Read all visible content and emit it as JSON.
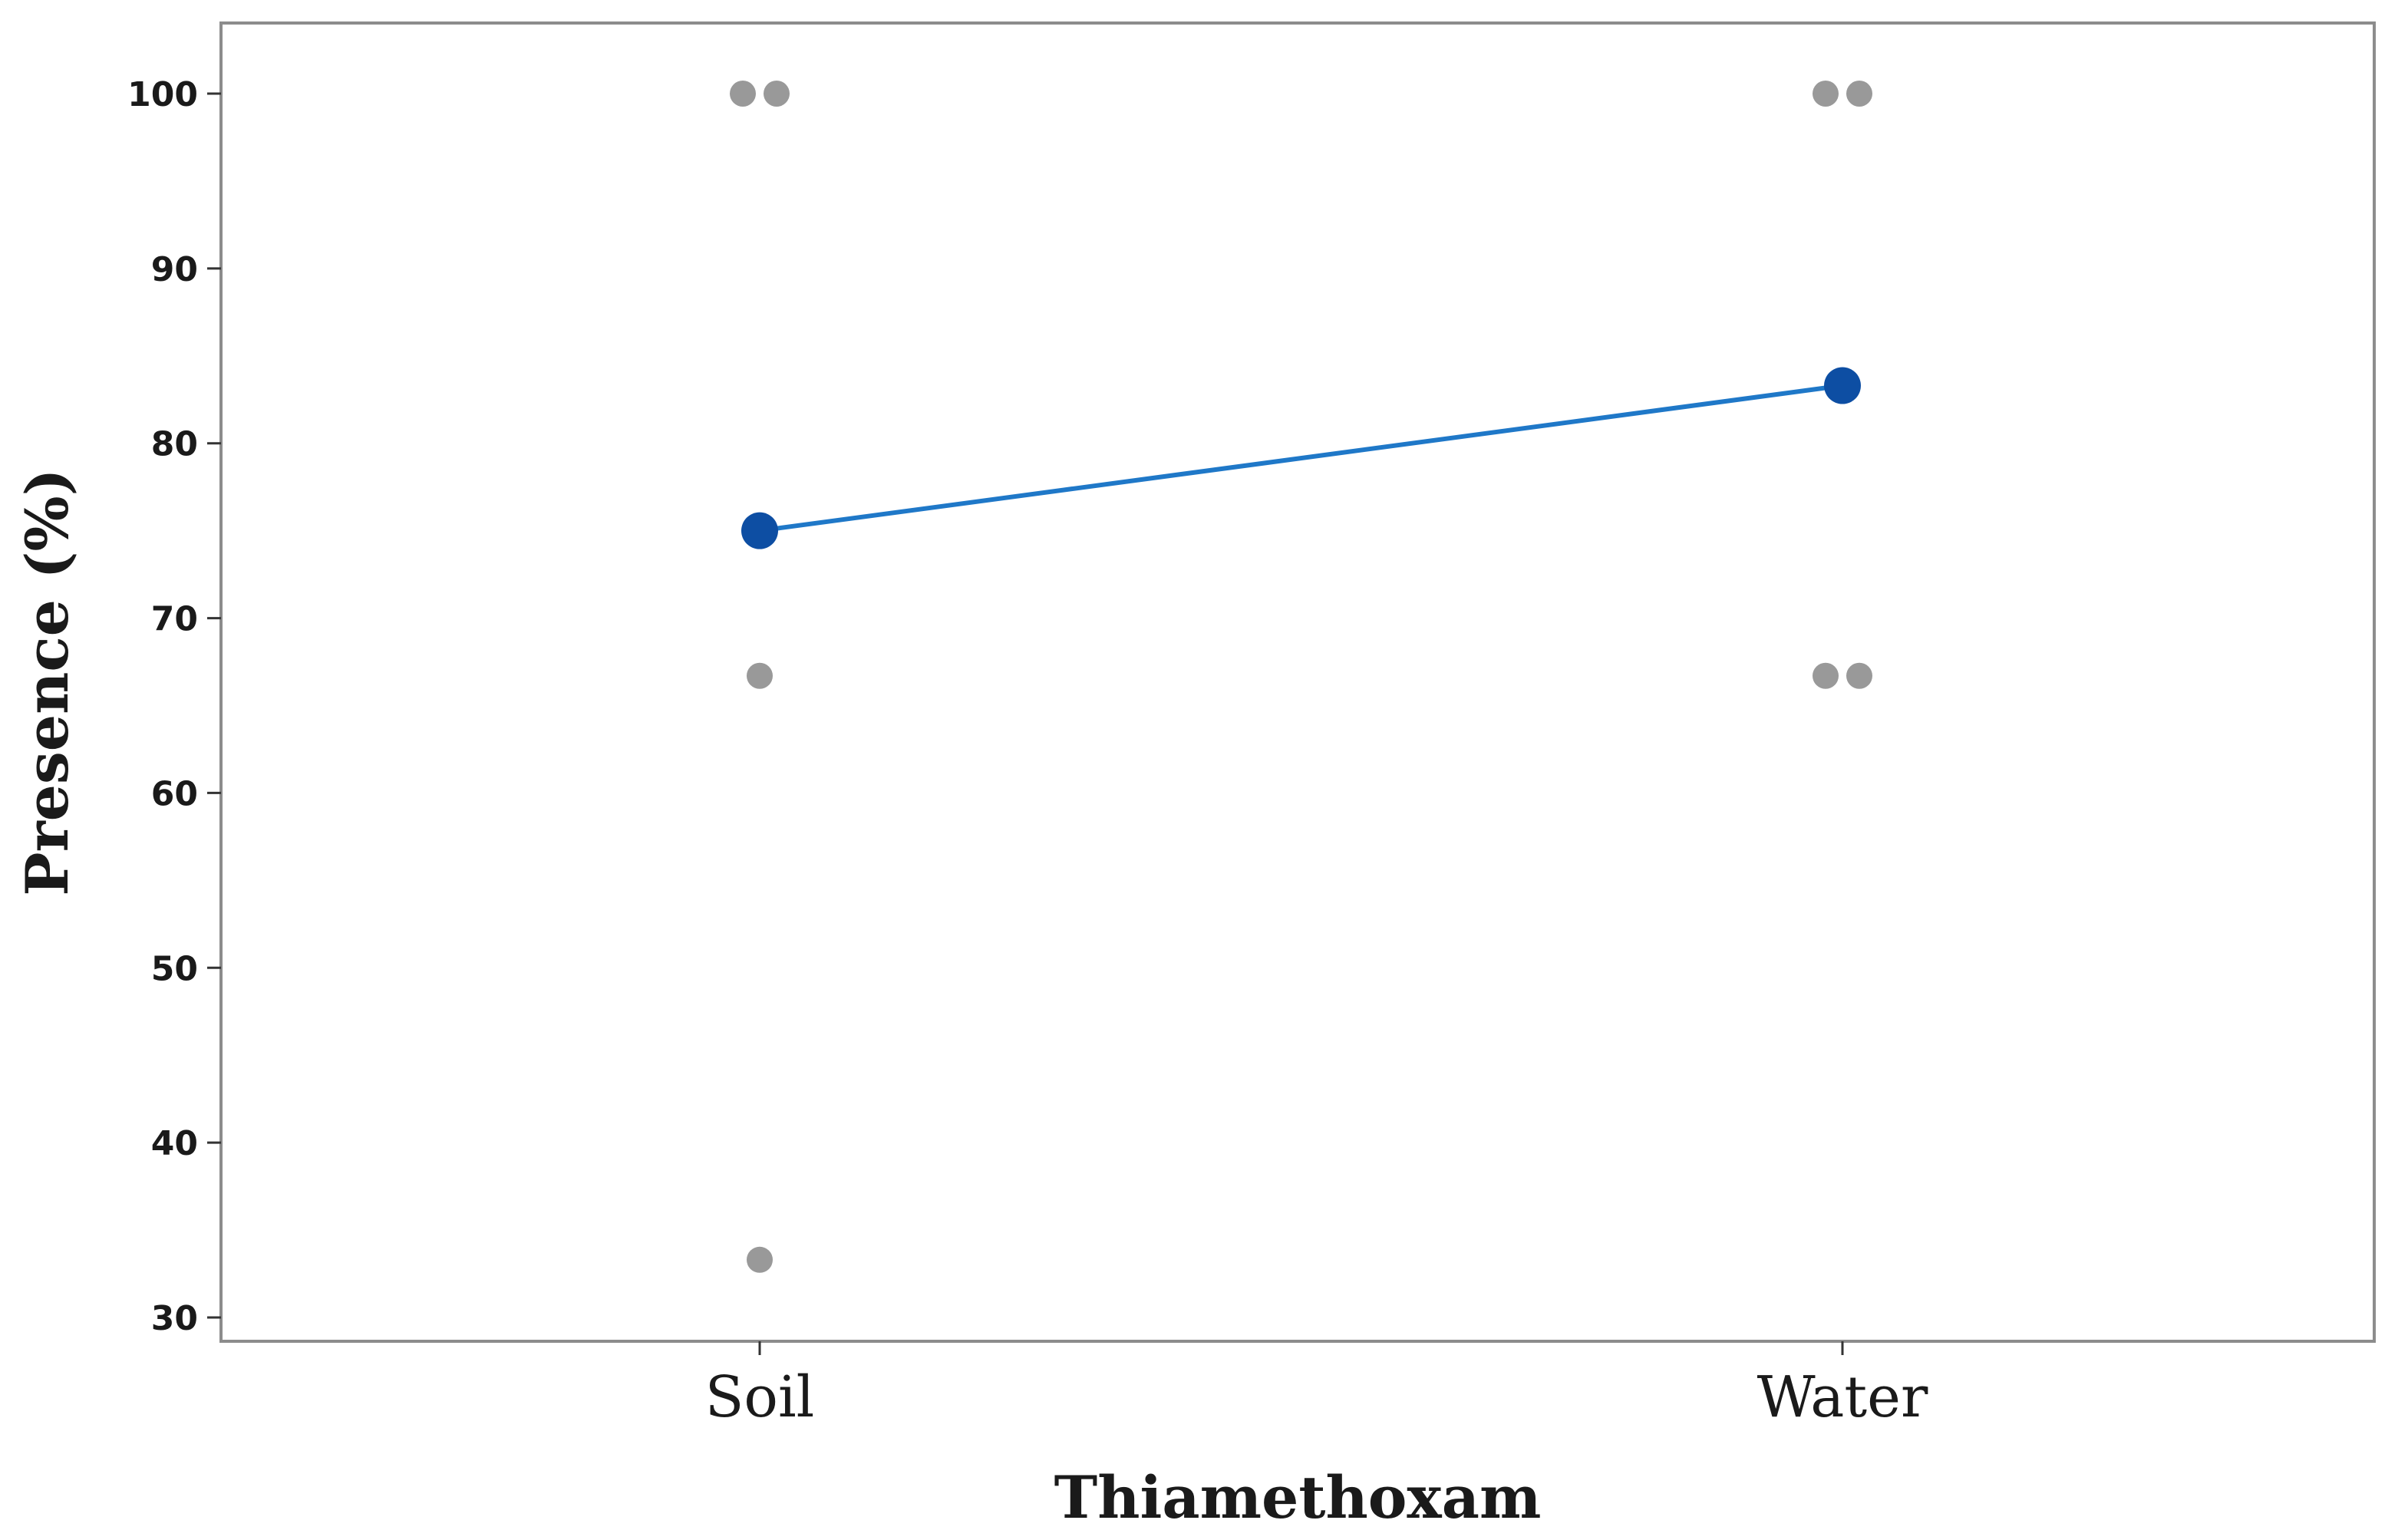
{
  "colors": {
    "mean_line": "#1f78c8",
    "mean_point": "#0d4ea3",
    "observation_point": "#999999",
    "frame": "#8c8c8c"
  },
  "chart_data": {
    "type": "line",
    "title": "",
    "xlabel": "Thiamethoxam",
    "ylabel": "Presence (%)",
    "categories": [
      "Soil",
      "Water"
    ],
    "ylim": [
      28,
      104
    ],
    "yticks": [
      30,
      40,
      50,
      60,
      70,
      80,
      90,
      100
    ],
    "grid": false,
    "legend": "none",
    "series": [
      {
        "kind": "mean",
        "values": [
          75.0,
          83.3
        ]
      }
    ],
    "observations": [
      {
        "category": "Soil",
        "value": 100,
        "offset": -1
      },
      {
        "category": "Soil",
        "value": 100,
        "offset": 1
      },
      {
        "category": "Soil",
        "value": 66.7,
        "offset": 0
      },
      {
        "category": "Soil",
        "value": 33.3,
        "offset": 0
      },
      {
        "category": "Water",
        "value": 100,
        "offset": -1
      },
      {
        "category": "Water",
        "value": 100,
        "offset": 1
      },
      {
        "category": "Water",
        "value": 66.7,
        "offset": -1
      },
      {
        "category": "Water",
        "value": 66.7,
        "offset": 1
      }
    ]
  }
}
